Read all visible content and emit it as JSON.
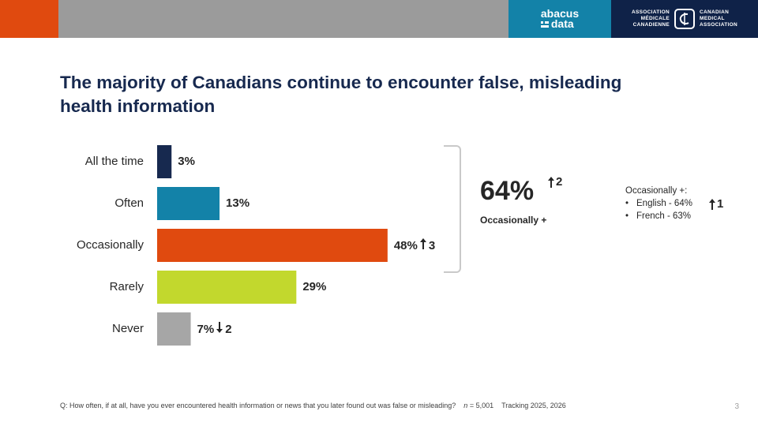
{
  "colors": {
    "brand_orange": "#e04a0f",
    "header_gray": "#9b9b9b",
    "abacus_teal": "#1382a8",
    "cma_navy": "#0f2248",
    "title_navy": "#17294f"
  },
  "header": {
    "abacus_logo_line1": "abacus",
    "abacus_logo_line2": "data",
    "cma_left": [
      "Association",
      "médicale",
      "canadienne"
    ],
    "cma_right": [
      "Canadian",
      "Medical",
      "Association"
    ]
  },
  "title": "The majority of Canadians continue to encounter false, misleading health information",
  "chart_data": {
    "type": "bar",
    "orientation": "horizontal",
    "categories": [
      "All the time",
      "Often",
      "Occasionally",
      "Rarely",
      "Never"
    ],
    "values": [
      3,
      13,
      48,
      29,
      7
    ],
    "value_labels": [
      "3%",
      "13%",
      "48%",
      "29%",
      "7%"
    ],
    "bar_colors": [
      "#17294f",
      "#1382a8",
      "#e04a0f",
      "#c2d82d",
      "#a6a6a6"
    ],
    "changes": [
      null,
      null,
      {
        "dir": "up",
        "value": "3"
      },
      null,
      {
        "dir": "down",
        "value": "2"
      }
    ],
    "xlim": [
      0,
      100
    ],
    "title": "",
    "xlabel": "",
    "ylabel": ""
  },
  "summary": {
    "value": "64%",
    "change": "2",
    "change_dir": "up",
    "label": "Occasionally +"
  },
  "breakdown": {
    "heading": "Occasionally +:",
    "items": [
      "English - 64%",
      "French - 63%"
    ],
    "change": "1",
    "change_dir": "up"
  },
  "footer": {
    "question": "Q: How often, if at all, have you ever encountered health information or news that you later found out was false or misleading?",
    "n_label": "n",
    "n_value": " = 5,001",
    "tracking": "Tracking 2025, 2026"
  },
  "page_number": "3"
}
